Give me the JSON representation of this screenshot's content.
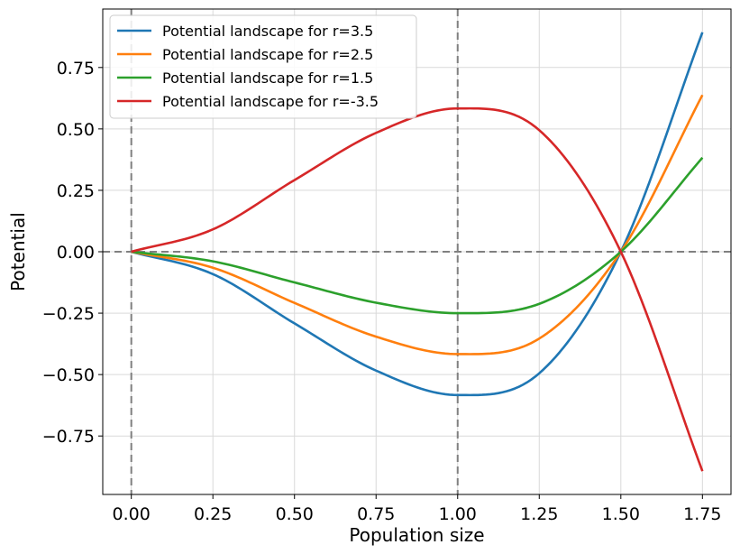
{
  "chart_data": {
    "type": "line",
    "xlabel": "Population size",
    "ylabel": "Potential",
    "xlim": [
      -0.0875,
      1.8375
    ],
    "ylim": [
      -0.988,
      0.988
    ],
    "xticks": [
      "0.00",
      "0.25",
      "0.50",
      "0.75",
      "1.00",
      "1.25",
      "1.50",
      "1.75"
    ],
    "yticks": [
      "0.75",
      "0.50",
      "0.25",
      "0.00",
      "−0.25",
      "−0.50",
      "−0.75"
    ],
    "grid": true,
    "legend_position": "top-left",
    "reference_lines": {
      "x": [
        0,
        1
      ],
      "y": [
        0
      ]
    },
    "x": [
      0.0,
      0.25,
      0.5,
      0.75,
      1.0,
      1.25,
      1.5,
      1.75
    ],
    "series": [
      {
        "name": "Potential landscape for r=3.5",
        "color": "#1f77b4",
        "values": [
          0.0,
          -0.0911,
          -0.2917,
          -0.4839,
          -0.5833,
          -0.4948,
          -0.0,
          0.8932
        ]
      },
      {
        "name": "Potential landscape for r=2.5",
        "color": "#ff7f0e",
        "values": [
          0.0,
          -0.0651,
          -0.2083,
          -0.3457,
          -0.4167,
          -0.3534,
          -0.0,
          0.638
        ]
      },
      {
        "name": "Potential landscape for r=1.5",
        "color": "#2ca02c",
        "values": [
          0.0,
          -0.0391,
          -0.125,
          -0.2074,
          -0.25,
          -0.2121,
          -0.0,
          0.3828
        ]
      },
      {
        "name": "Potential landscape for r=-3.5",
        "color": "#d62728",
        "values": [
          0.0,
          0.0911,
          0.2917,
          0.4839,
          0.5833,
          0.4948,
          0.0,
          -0.8932
        ]
      }
    ]
  },
  "colors": {
    "grid": "#d9d9d9",
    "reference": "#808080",
    "axes": "#000000"
  }
}
